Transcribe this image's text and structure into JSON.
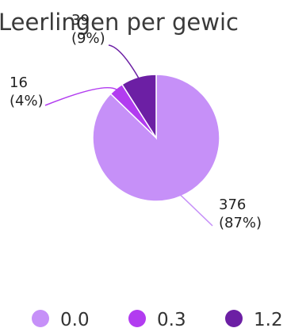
{
  "chart_data": {
    "type": "pie",
    "title": "Leerlingen per gewic",
    "categories": [
      "0.0",
      "0.3",
      "1.2"
    ],
    "values": [
      376,
      16,
      39
    ],
    "percent_labels": [
      "(87%)",
      "(4%)",
      "(9%)"
    ],
    "value_labels": [
      "376",
      "16",
      "39"
    ],
    "colors": [
      "#c690f8",
      "#b23cf0",
      "#6c1fa4"
    ],
    "legend": {
      "placement": "bottom",
      "items": [
        "0.0",
        "0.3",
        "1.2"
      ]
    }
  }
}
